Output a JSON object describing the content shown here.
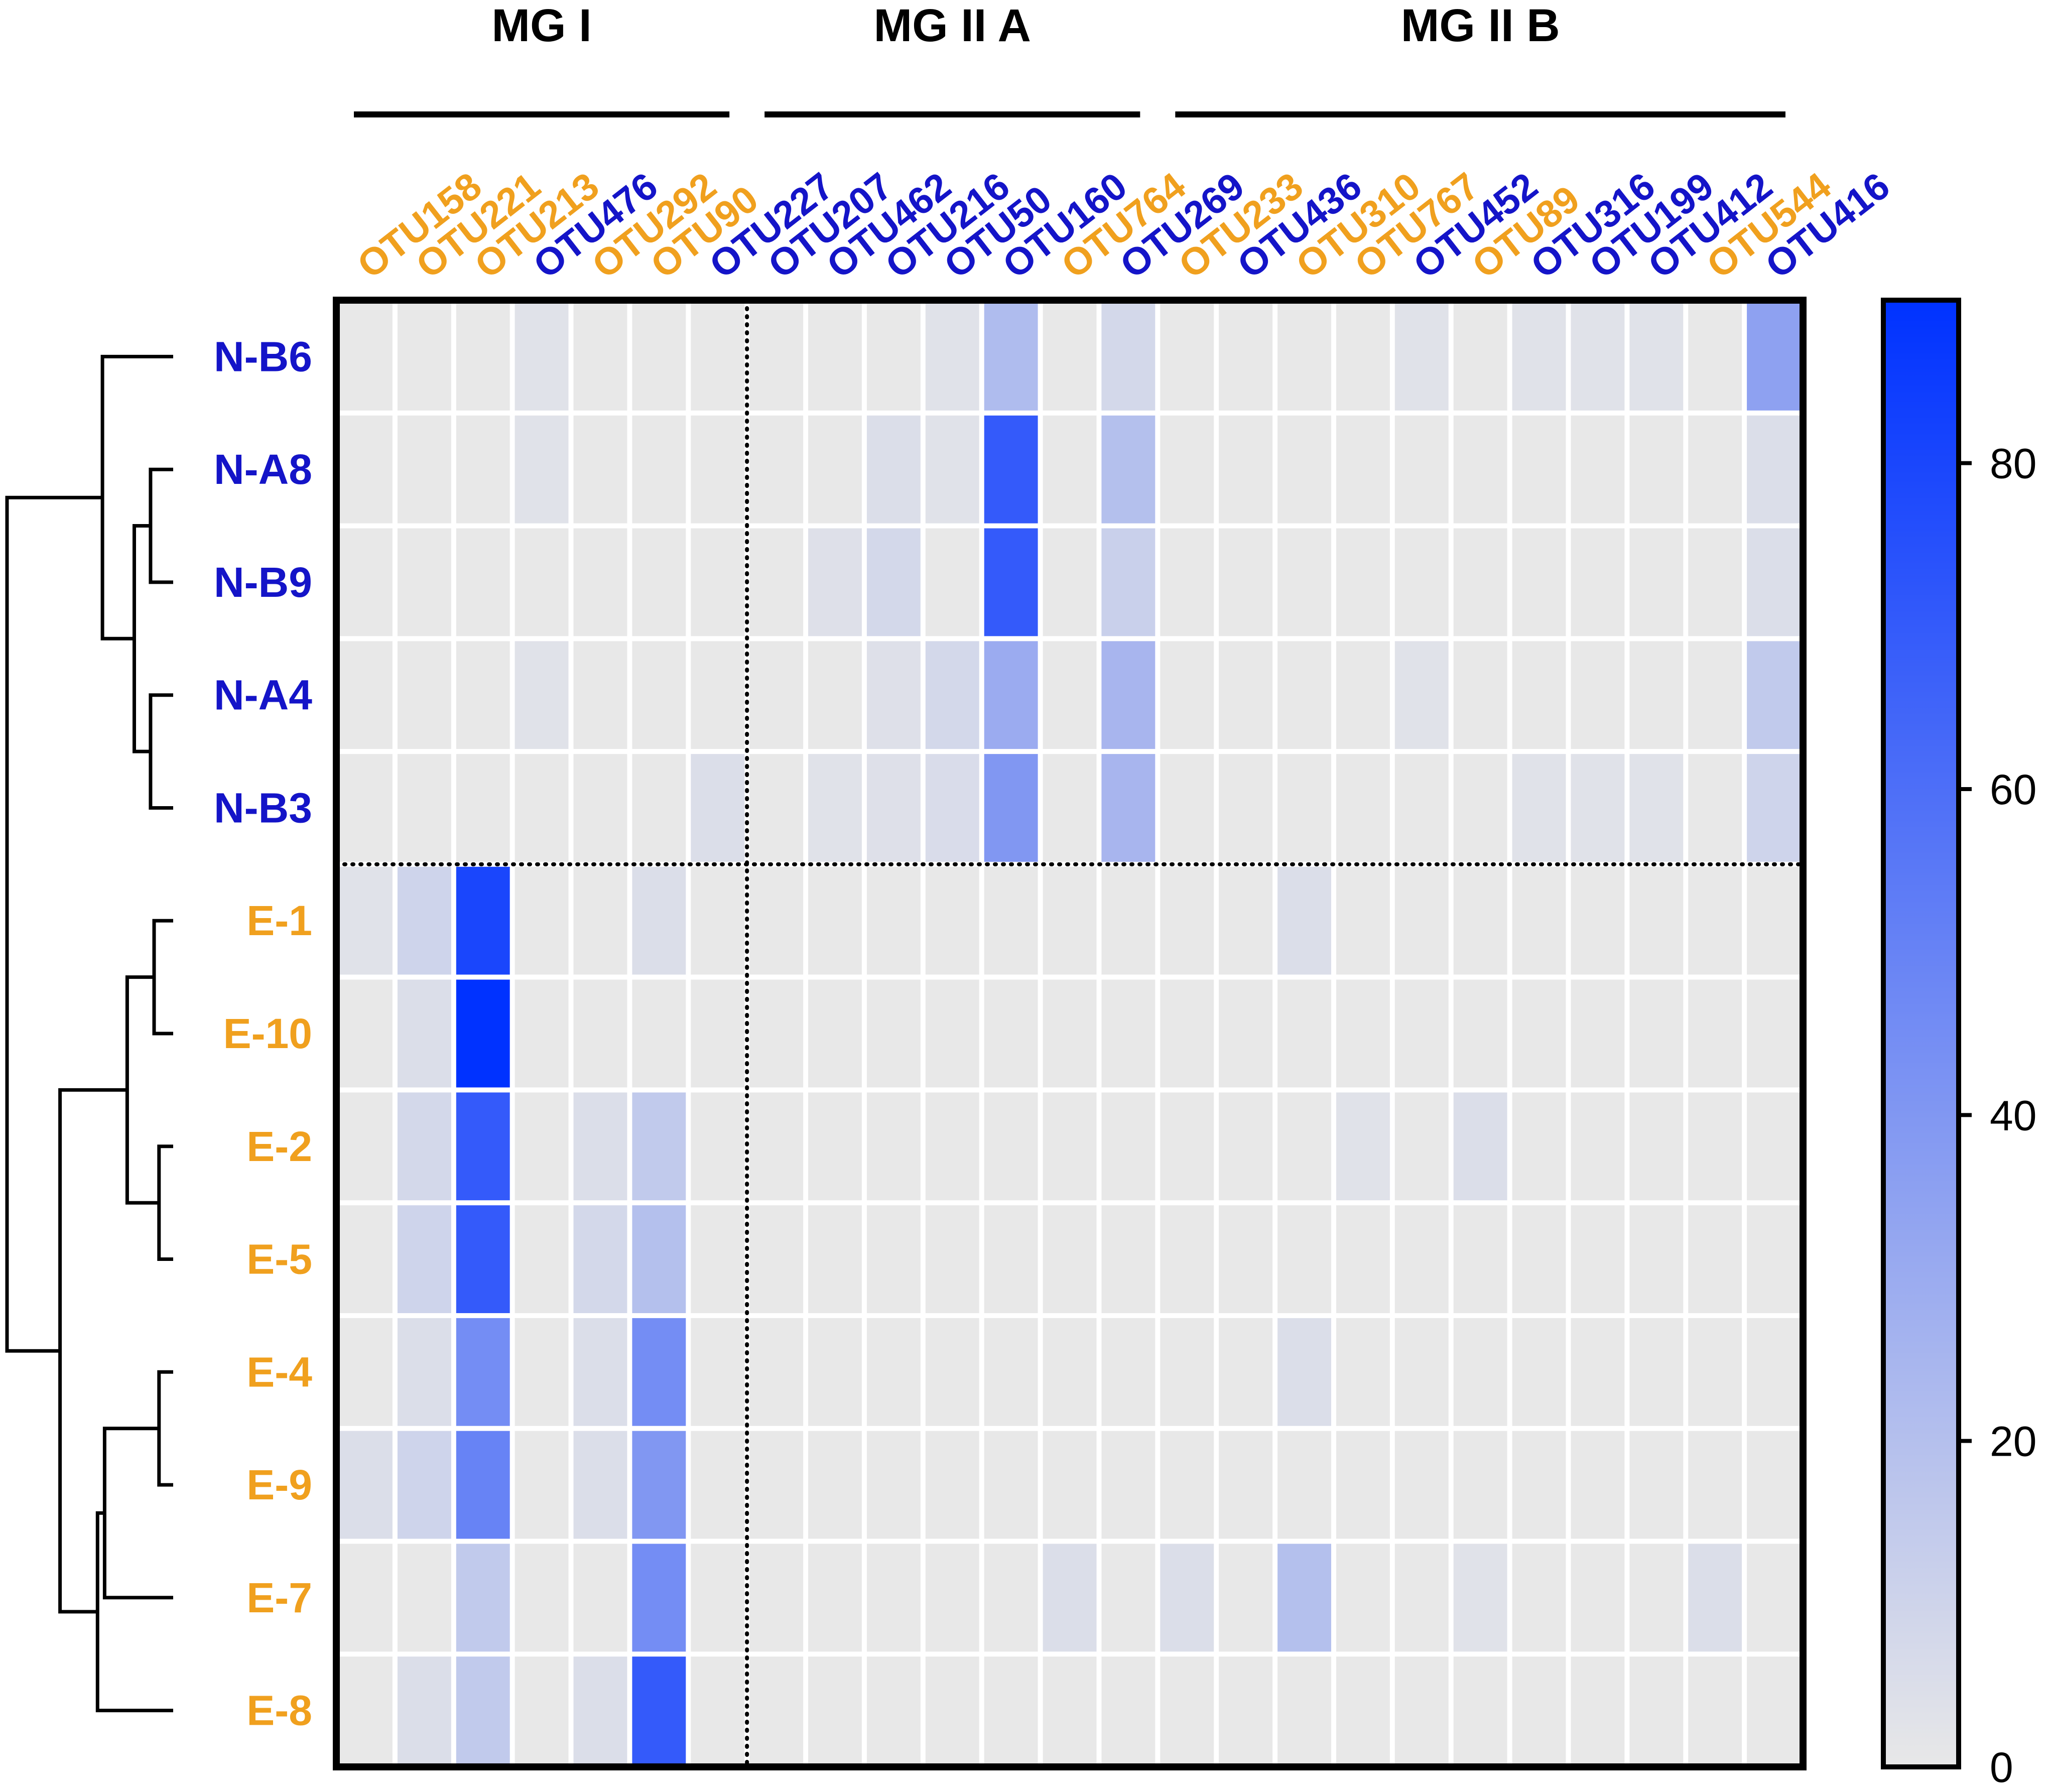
{
  "chart_data": {
    "type": "heatmap",
    "title": "",
    "groups": [
      {
        "label": "MG I",
        "from": 1,
        "to": 7
      },
      {
        "label": "MG II A",
        "from": 8,
        "to": 14
      },
      {
        "label": "MG II B",
        "from": 15,
        "to": 25
      }
    ],
    "columns": [
      "OTU158",
      "OTU221",
      "OTU213",
      "OTU476",
      "OTU292",
      "OTU90",
      "OTU227",
      "OTU207",
      "OTU462",
      "OTU216",
      "OTU50",
      "OTU160",
      "OTU764",
      "OTU269",
      "OTU233",
      "OTU436",
      "OTU310",
      "OTU767",
      "OTU452",
      "OTU89",
      "OTU316",
      "OTU199",
      "OTU412",
      "OTU544",
      "OTU416"
    ],
    "column_classes": [
      "E",
      "E",
      "E",
      "N",
      "E",
      "E",
      "N",
      "N",
      "N",
      "N",
      "N",
      "N",
      "E",
      "N",
      "E",
      "N",
      "E",
      "E",
      "N",
      "E",
      "N",
      "N",
      "N",
      "E",
      "N"
    ],
    "rows": [
      "N-B6",
      "N-A8",
      "N-B9",
      "N-A4",
      "N-B3",
      "E-1",
      "E-10",
      "E-2",
      "E-5",
      "E-4",
      "E-9",
      "E-7",
      "E-8"
    ],
    "row_classes": [
      "N",
      "N",
      "N",
      "N",
      "N",
      "E",
      "E",
      "E",
      "E",
      "E",
      "E",
      "E",
      "E"
    ],
    "class_colors": {
      "N": "#1414c8",
      "E": "#f0a01e"
    },
    "values": [
      [
        0,
        0,
        0,
        3,
        0,
        0,
        0,
        0,
        0,
        0,
        3,
        22,
        0,
        8,
        0,
        0,
        0,
        0,
        3,
        0,
        3,
        3,
        3,
        0,
        35
      ],
      [
        0,
        0,
        0,
        3,
        0,
        0,
        0,
        0,
        0,
        5,
        3,
        70,
        0,
        20,
        0,
        0,
        0,
        0,
        0,
        0,
        0,
        0,
        0,
        0,
        5
      ],
      [
        0,
        0,
        0,
        0,
        0,
        0,
        0,
        0,
        4,
        8,
        0,
        70,
        0,
        12,
        0,
        0,
        0,
        0,
        0,
        0,
        0,
        0,
        0,
        0,
        5
      ],
      [
        0,
        0,
        0,
        3,
        0,
        0,
        0,
        0,
        0,
        4,
        8,
        30,
        0,
        25,
        0,
        0,
        0,
        0,
        3,
        0,
        0,
        0,
        0,
        0,
        15
      ],
      [
        0,
        0,
        0,
        0,
        0,
        0,
        5,
        0,
        3,
        4,
        6,
        40,
        0,
        25,
        0,
        0,
        0,
        0,
        0,
        0,
        3,
        3,
        3,
        0,
        10
      ],
      [
        3,
        10,
        80,
        0,
        0,
        5,
        0,
        0,
        0,
        0,
        0,
        0,
        0,
        0,
        0,
        0,
        5,
        0,
        0,
        0,
        0,
        0,
        0,
        0,
        0
      ],
      [
        0,
        5,
        90,
        0,
        0,
        0,
        0,
        0,
        0,
        0,
        0,
        0,
        0,
        0,
        0,
        0,
        0,
        0,
        0,
        0,
        0,
        0,
        0,
        0,
        0
      ],
      [
        0,
        8,
        70,
        0,
        5,
        15,
        0,
        0,
        0,
        0,
        0,
        0,
        0,
        0,
        0,
        0,
        0,
        3,
        0,
        5,
        0,
        0,
        0,
        0,
        0
      ],
      [
        0,
        10,
        70,
        0,
        8,
        20,
        0,
        0,
        0,
        0,
        0,
        0,
        0,
        0,
        0,
        0,
        0,
        0,
        0,
        0,
        0,
        0,
        0,
        0,
        0
      ],
      [
        0,
        5,
        45,
        0,
        5,
        45,
        0,
        0,
        0,
        0,
        0,
        0,
        0,
        0,
        0,
        0,
        5,
        0,
        0,
        0,
        0,
        0,
        0,
        0,
        0
      ],
      [
        5,
        10,
        50,
        0,
        5,
        40,
        0,
        0,
        0,
        0,
        0,
        0,
        0,
        0,
        0,
        0,
        0,
        0,
        0,
        0,
        0,
        0,
        0,
        0,
        0
      ],
      [
        0,
        0,
        15,
        0,
        0,
        45,
        0,
        0,
        0,
        0,
        0,
        0,
        5,
        0,
        5,
        0,
        20,
        0,
        0,
        3,
        0,
        0,
        0,
        5,
        0
      ],
      [
        0,
        5,
        15,
        0,
        5,
        70,
        0,
        0,
        0,
        0,
        0,
        0,
        0,
        0,
        0,
        0,
        0,
        0,
        0,
        0,
        0,
        0,
        0,
        0,
        0
      ]
    ],
    "colorbar": {
      "min": 0,
      "max": 90,
      "ticks": [
        0,
        20,
        40,
        60,
        80
      ],
      "low_color": "#e8e8e8",
      "high_color": "#0032ff"
    },
    "row_split_after": 5,
    "column_split_after": 7,
    "dendrogram": {
      "merges": [
        {
          "left": "N-A8",
          "right": "N-B9",
          "height": 0.32
        },
        {
          "left": "N-A4",
          "right": "N-B3",
          "height": 0.32
        },
        {
          "left": "m0",
          "right": "m1",
          "height": 0.55
        },
        {
          "left": "N-B6",
          "right": "m2",
          "height": 1.0
        },
        {
          "left": "E-1",
          "right": "E-10",
          "height": 0.27
        },
        {
          "left": "E-2",
          "right": "E-5",
          "height": 0.2
        },
        {
          "left": "m4",
          "right": "m5",
          "height": 0.65
        },
        {
          "left": "E-4",
          "right": "E-9",
          "height": 0.2
        },
        {
          "left": "m7",
          "right": "E-7",
          "height": 0.97
        },
        {
          "left": "m8",
          "right": "E-8",
          "height": 1.07
        },
        {
          "left": "m6",
          "right": "m9",
          "height": 1.6
        },
        {
          "left": "m3",
          "right": "m10",
          "height": 2.35
        }
      ]
    }
  }
}
